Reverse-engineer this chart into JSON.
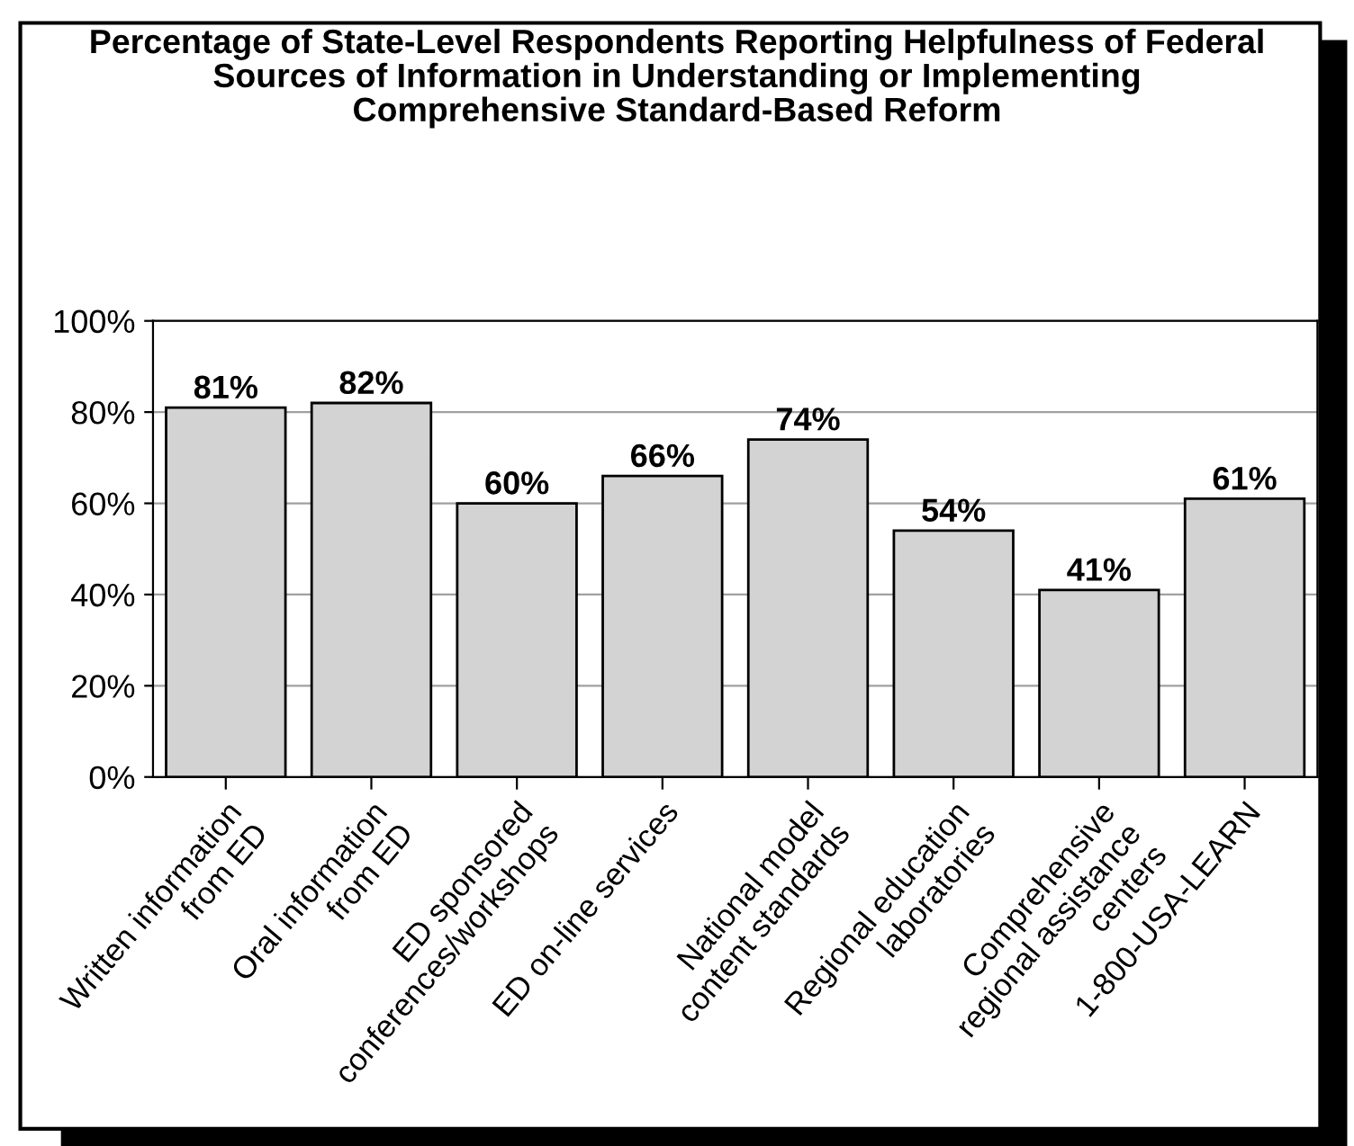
{
  "chart_data": {
    "type": "bar",
    "title": "Percentage of State-Level Respondents Reporting Helpfulness of Federal\nSources of Information in Understanding or Implementing\nComprehensive Standard-Based Reform",
    "categories": [
      "Written information\nfrom ED",
      "Oral information\nfrom ED",
      "ED sponsored\nconferences/workshops",
      "ED on-line services",
      "National model\ncontent standards",
      "Regional education\nlaboratories",
      "Comprehensive\nregional assistance\ncenters",
      "1-800-USA-LEARN"
    ],
    "values": [
      81,
      82,
      60,
      66,
      74,
      54,
      41,
      61
    ],
    "value_labels": [
      "81%",
      "82%",
      "60%",
      "66%",
      "74%",
      "54%",
      "41%",
      "61%"
    ],
    "color": "#d3d3d3",
    "ylim": [
      0,
      100
    ],
    "yticks": [
      {
        "value": 0,
        "label": "0%"
      },
      {
        "value": 20,
        "label": "20%"
      },
      {
        "value": 40,
        "label": "40%"
      },
      {
        "value": 60,
        "label": "60%"
      },
      {
        "value": 80,
        "label": "80%"
      },
      {
        "value": 100,
        "label": "100%"
      }
    ],
    "grid": "y"
  }
}
